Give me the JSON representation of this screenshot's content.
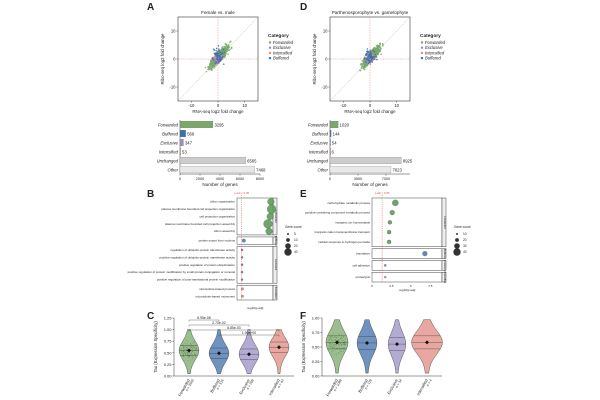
{
  "panels": {
    "A": "A",
    "B": "B",
    "C": "C",
    "D": "D",
    "E": "E",
    "F": "F"
  },
  "colors": {
    "forwarded": "#7aa86a",
    "buffered": "#3f6fa8",
    "exclusive": "#9b8fc6",
    "intensified": "#e08a80",
    "unchanged": "#cccccc",
    "other": "#e8e8e8",
    "goGreen": "#5e9c5a",
    "goBlue": "#4f7fb4",
    "goPurple": "#8b6fb8",
    "goPink": "#e48b8b",
    "pline": "#d9534f"
  },
  "chart_data": [
    {
      "id": "A-scatter",
      "type": "scatter",
      "title": "Female vs. male",
      "xlabel": "RNA-seq log2 fold change",
      "ylabel": "Ribo-seq log2 fold change",
      "xlim": [
        -15,
        15
      ],
      "ylim": [
        -15,
        15
      ],
      "xticks": [
        -10,
        0,
        10
      ],
      "yticks": [
        -10,
        0,
        10
      ],
      "legend_title": "Category",
      "legend": [
        "Forwarded",
        "Exclusive",
        "Intensified",
        "Buffered"
      ]
    },
    {
      "id": "A-bar",
      "type": "bar",
      "orientation": "horizontal",
      "categories": [
        "Forwarded",
        "Buffered",
        "Exclusive",
        "Intensified",
        "Unchanged",
        "Other"
      ],
      "values": [
        3295,
        569,
        347,
        53,
        6565,
        7468
      ],
      "xlabel": "Number of genes",
      "xlim": [
        0,
        8000
      ],
      "xticks": [
        0,
        2000,
        4000,
        6000,
        8000
      ]
    },
    {
      "id": "D-scatter",
      "type": "scatter",
      "title": "Parthenosporophyte vs. gametophyte",
      "xlabel": "RNA-seq log2 fold change",
      "ylabel": "Ribo-seq log2 fold change",
      "xlim": [
        -15,
        15
      ],
      "ylim": [
        -15,
        15
      ],
      "xticks": [
        -10,
        0,
        10
      ],
      "yticks": [
        -10,
        0,
        10
      ],
      "legend_title": "Category",
      "legend": [
        "Forwarded",
        "Exclusive",
        "Intensified",
        "Buffered"
      ]
    },
    {
      "id": "D-bar",
      "type": "bar",
      "orientation": "horizontal",
      "categories": [
        "Forwarded",
        "Buffered",
        "Exclusive",
        "Intensified",
        "Unchanged",
        "Other"
      ],
      "values": [
        1020,
        144,
        54,
        6,
        8925,
        7623
      ],
      "xlabel": "Number of genes",
      "xlim": [
        0,
        10000
      ],
      "xticks": [
        0,
        3500,
        7000
      ]
    },
    {
      "id": "B-go",
      "type": "scatter",
      "pline_label": "p.adj = 0.05",
      "xlabel": "-log10(p.adj)",
      "size_legend_title": "Gene count",
      "size_legend": [
        "5",
        "10",
        "20",
        "40"
      ],
      "groups": [
        {
          "label": "Forwarded",
          "terms": [
            "cilium organization",
            "plasma membrane bounded cell projection organization",
            "cell projection organization",
            "plasma membrane bounded cell projection assembly",
            "cilium assembly"
          ],
          "values": [
            9.4,
            9.6,
            9.2,
            8.6,
            8.9
          ],
          "sizes": [
            3,
            4,
            3,
            4,
            3
          ]
        },
        {
          "label": "Buffered",
          "terms": [
            "protein export from nucleus"
          ],
          "values": [
            1.9
          ],
          "sizes": [
            1.6
          ]
        },
        {
          "label": "Exclusive",
          "terms": [
            "regulation of ubiquitin-protein transferase activity",
            "positive regulation of ubiquitin-protein transferase activity",
            "positive regulation of protein ubiquitination",
            "positive regulation of protein modification by small protein conjugation or removal",
            "positive regulation of post-translational protein modification"
          ],
          "values": [
            1.4,
            1.4,
            1.4,
            1.4,
            1.4
          ],
          "sizes": [
            1,
            1,
            1,
            1,
            1
          ]
        },
        {
          "label": "Intensified",
          "terms": [
            "microtubule-based process",
            "microtubule-based movement"
          ],
          "values": [
            1.5,
            1.5
          ],
          "sizes": [
            1.2,
            1.2
          ]
        }
      ]
    },
    {
      "id": "E-go",
      "type": "scatter",
      "pline_label": "p.adj = 0.05",
      "xlabel": "-log10(p.adj)",
      "size_legend_title": "Gene count",
      "size_legend": [
        "10",
        "20",
        "30",
        "40"
      ],
      "groups": [
        {
          "label": "Forwarded",
          "terms": [
            "carbohydrate metabolic process",
            "pyridine-containing compound metabolic process",
            "inorganic ion homeostasis",
            "inorganic cation transmembrane transport",
            "cellular response to hydrogen peroxide"
          ],
          "values": [
            3.0,
            2.6,
            2.3,
            2.2,
            2.2
          ],
          "sizes": [
            2.8,
            2.2,
            1.8,
            1.8,
            1.8
          ]
        },
        {
          "label": "Buffered",
          "terms": [
            "translation"
          ],
          "values": [
            6.8
          ],
          "sizes": [
            2.2
          ]
        },
        {
          "label": "Exclusive",
          "terms": [
            "cell adhesion"
          ],
          "values": [
            1.7
          ],
          "sizes": [
            1
          ]
        },
        {
          "label": "Intensified",
          "terms": [
            "proteolysis"
          ],
          "values": [
            1.7
          ],
          "sizes": [
            1
          ]
        }
      ],
      "xticks": [
        0,
        2.5,
        5,
        7.5
      ]
    },
    {
      "id": "C-violin",
      "type": "violin",
      "ylabel": "Tau (Expression Specificity)",
      "ylim": [
        0,
        1.25
      ],
      "yticks": [
        0,
        0.25,
        0.5,
        0.75,
        1.0,
        1.25
      ],
      "categories": [
        "Forwarded",
        "Buffered",
        "Exclusive",
        "Intensified"
      ],
      "ns": [
        "n = 2660",
        "n = 516",
        "n = 269",
        "n = 43"
      ],
      "means": [
        0.55,
        0.49,
        0.47,
        0.62
      ],
      "brackets": [
        {
          "a": 0,
          "b": 1,
          "label": "6.95e-08"
        },
        {
          "a": 0,
          "b": 2,
          "label": "2.70e-02"
        },
        {
          "a": 0,
          "b": 3,
          "label": "6.85e-03"
        },
        {
          "a": 1,
          "b": 3,
          "label": "1.00e+00"
        }
      ]
    },
    {
      "id": "F-violin",
      "type": "violin",
      "ylabel": "Tau (Expression Specificity)",
      "ylim": [
        0,
        1.0
      ],
      "yticks": [
        0,
        0.25,
        0.5,
        0.75,
        1.0
      ],
      "categories": [
        "Forwarded",
        "Buffered",
        "Exclusive",
        "Intensified"
      ],
      "ns": [
        "n = 1089",
        "n = 119",
        "n = 34",
        "n = 4"
      ],
      "means": [
        0.58,
        0.57,
        0.55,
        0.58
      ]
    }
  ]
}
